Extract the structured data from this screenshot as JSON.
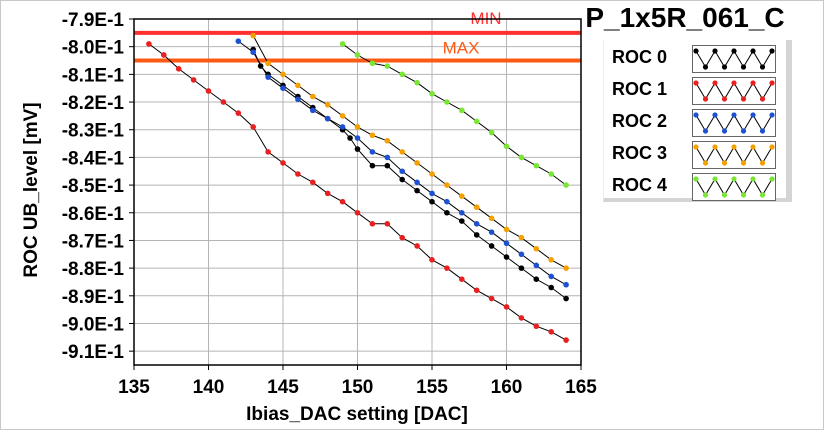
{
  "chart_data": {
    "type": "line",
    "title": "P_1x5R_061_C",
    "xlabel": "Ibias_DAC setting [DAC]",
    "ylabel": "ROC UB_level [mV]",
    "xlim": [
      135,
      165
    ],
    "ylim": [
      -0.915,
      -0.79
    ],
    "x_ticks": [
      135,
      140,
      145,
      150,
      155,
      160,
      165
    ],
    "x_tick_labels": [
      "135",
      "140",
      "145",
      "150",
      "155",
      "160",
      "165"
    ],
    "y_ticks": [
      -0.79,
      -0.8,
      -0.81,
      -0.82,
      -0.83,
      -0.84,
      -0.85,
      -0.86,
      -0.87,
      -0.88,
      -0.89,
      -0.9,
      -0.91
    ],
    "y_tick_labels": [
      "-7.9E-1",
      "-8.0E-1",
      "-8.1E-1",
      "-8.2E-1",
      "-8.3E-1",
      "-8.4E-1",
      "-8.5E-1",
      "-8.6E-1",
      "-8.7E-1",
      "-8.8E-1",
      "-8.9E-1",
      "-9.0E-1",
      "-9.1E-1"
    ],
    "grid": true,
    "legend_position": "right",
    "limits": [
      {
        "name": "MIN",
        "y": -0.795,
        "color": "#ff3030"
      },
      {
        "name": "MAX",
        "y": -0.805,
        "color": "#ff5a14"
      }
    ],
    "series": [
      {
        "name": "ROC 0",
        "color": "#000000",
        "x": [
          143,
          143.5,
          144,
          145,
          146,
          147,
          148,
          149,
          149.5,
          150,
          151,
          152,
          153,
          154,
          155,
          156,
          157,
          158,
          159,
          160,
          161,
          162,
          163,
          164
        ],
        "y": [
          -0.801,
          -0.807,
          -0.81,
          -0.814,
          -0.818,
          -0.822,
          -0.826,
          -0.83,
          -0.833,
          -0.837,
          -0.843,
          -0.843,
          -0.848,
          -0.852,
          -0.856,
          -0.86,
          -0.863,
          -0.868,
          -0.872,
          -0.876,
          -0.88,
          -0.884,
          -0.887,
          -0.891
        ]
      },
      {
        "name": "ROC 1",
        "color": "#e82020",
        "x": [
          136,
          137,
          138,
          139,
          140,
          141,
          142,
          143,
          144,
          145,
          146,
          147,
          148,
          149,
          150,
          151,
          152,
          153,
          154,
          155,
          156,
          157,
          158,
          159,
          160,
          161,
          162,
          163,
          164
        ],
        "y": [
          -0.799,
          -0.803,
          -0.808,
          -0.812,
          -0.816,
          -0.82,
          -0.824,
          -0.829,
          -0.838,
          -0.842,
          -0.846,
          -0.849,
          -0.853,
          -0.856,
          -0.86,
          -0.864,
          -0.864,
          -0.869,
          -0.872,
          -0.877,
          -0.88,
          -0.884,
          -0.888,
          -0.891,
          -0.894,
          -0.898,
          -0.901,
          -0.903,
          -0.906
        ]
      },
      {
        "name": "ROC 2",
        "color": "#1e50d2",
        "x": [
          142,
          143,
          144,
          145,
          146,
          147,
          148,
          149,
          150,
          151,
          152,
          153,
          154,
          155,
          156,
          157,
          158,
          159,
          160,
          161,
          162,
          163,
          164
        ],
        "y": [
          -0.798,
          -0.802,
          -0.811,
          -0.815,
          -0.819,
          -0.823,
          -0.826,
          -0.829,
          -0.833,
          -0.838,
          -0.84,
          -0.845,
          -0.849,
          -0.853,
          -0.856,
          -0.86,
          -0.864,
          -0.867,
          -0.871,
          -0.875,
          -0.879,
          -0.883,
          -0.886
        ]
      },
      {
        "name": "ROC 3",
        "color": "#f5a000",
        "x": [
          143,
          144,
          145,
          146,
          147,
          148,
          149,
          150,
          151,
          152,
          153,
          154,
          155,
          156,
          157,
          158,
          159,
          160,
          161,
          162,
          163,
          164
        ],
        "y": [
          -0.796,
          -0.806,
          -0.81,
          -0.814,
          -0.818,
          -0.821,
          -0.825,
          -0.829,
          -0.832,
          -0.834,
          -0.838,
          -0.842,
          -0.846,
          -0.85,
          -0.854,
          -0.858,
          -0.862,
          -0.866,
          -0.869,
          -0.873,
          -0.877,
          -0.88
        ]
      },
      {
        "name": "ROC 4",
        "color": "#78e632",
        "x": [
          149,
          150,
          151,
          152,
          153,
          154,
          155,
          156,
          157,
          158,
          159,
          160,
          161,
          162,
          163,
          164
        ],
        "y": [
          -0.799,
          -0.803,
          -0.806,
          -0.807,
          -0.81,
          -0.813,
          -0.817,
          -0.82,
          -0.823,
          -0.827,
          -0.831,
          -0.836,
          -0.84,
          -0.843,
          -0.846,
          -0.85
        ]
      }
    ]
  }
}
